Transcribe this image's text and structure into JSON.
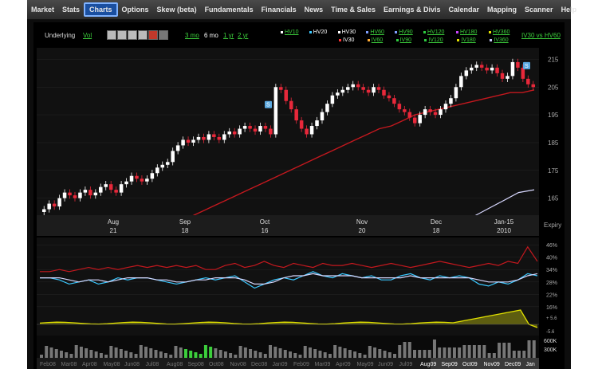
{
  "nav": {
    "tabs": [
      "Market",
      "Stats",
      "Charts",
      "Options",
      "Skew (beta)",
      "Fundamentals",
      "Financials",
      "News",
      "Time & Sales",
      "Earnings & Divis",
      "Calendar",
      "Mapping",
      "Scanner",
      "Help"
    ],
    "active": "Charts"
  },
  "toolbar": {
    "underlying_label": "Underlying",
    "vol_link": "Vol",
    "ranges": [
      "3 mo",
      "6 mo",
      "1 yr",
      "2 yr"
    ],
    "active_range": "6 mo",
    "compare_label": "IV30 vs HV60",
    "legend_row1": [
      {
        "label": "HV10",
        "color": "#ffffff",
        "underline": true
      },
      {
        "label": "HV20",
        "color": "#3cc8ff",
        "underline": false
      },
      {
        "label": "HV30",
        "color": "#ffffff",
        "underline": false
      },
      {
        "label": "HV60",
        "color": "#7f9fff",
        "underline": true
      },
      {
        "label": "HV90",
        "color": "#7f9fff",
        "underline": true
      },
      {
        "label": "HV120",
        "color": "#2ecc40",
        "underline": true
      },
      {
        "label": "HV180",
        "color": "#cc44ff",
        "underline": true
      },
      {
        "label": "HV360",
        "color": "#e0e000",
        "underline": true
      }
    ],
    "legend_row2": [
      {
        "label": "IV30",
        "color": "#ff3333",
        "underline": false
      },
      {
        "label": "IV60",
        "color": "#ffaa33",
        "underline": true
      },
      {
        "label": "IV90",
        "color": "#2ecc40",
        "underline": true
      },
      {
        "label": "IV120",
        "color": "#2ecc40",
        "underline": true
      },
      {
        "label": "IV180",
        "color": "#e0e000",
        "underline": true
      },
      {
        "label": "IV360",
        "color": "#ccccff",
        "underline": true
      }
    ]
  },
  "price_chart": {
    "y_ticks": [
      "215",
      "205",
      "195",
      "185",
      "175",
      "165"
    ],
    "months": [
      {
        "month": "Aug",
        "day": "21"
      },
      {
        "month": "Sep",
        "day": "18"
      },
      {
        "month": "Oct",
        "day": "16"
      },
      {
        "month": "Nov",
        "day": "20"
      },
      {
        "month": "Dec",
        "day": "18"
      },
      {
        "month": "Jan-15",
        "day": "2010"
      }
    ],
    "expiry_label": "Expiry",
    "markers": [
      "S",
      "S"
    ]
  },
  "vol_chart": {
    "y_ticks": [
      "46%",
      "40%",
      "34%",
      "28%",
      "22%",
      "16%"
    ],
    "spread_ticks": [
      "+ 5.6",
      "-5.6"
    ],
    "volume_ticks": [
      "600K",
      "300K"
    ]
  },
  "timeline": {
    "labels": [
      "Feb08",
      "Mar08",
      "Apr08",
      "May08",
      "Jun08",
      "Jul08",
      "Aug08",
      "Sep08",
      "Oct08",
      "Nov08",
      "Dec08",
      "Jan09",
      "Feb09",
      "Mar09",
      "Apr09",
      "May09",
      "Jun09",
      "Jul09",
      "Aug09",
      "Sep09",
      "Oct09",
      "Nov09",
      "Dec09",
      "Jan"
    ]
  },
  "colors": {
    "accent": "#1a4fa0",
    "iv30": "#c4181e",
    "hv20": "#3cc8ff",
    "hv30": "#d8d8ff",
    "spread": "#e0e000",
    "up": "#ffffff",
    "down": "#e8283a"
  },
  "chart_data": [
    {
      "type": "candlestick",
      "title": "",
      "ylim": [
        160,
        218
      ],
      "x_labels": [
        "Aug 21",
        "Sep 18",
        "Oct 16",
        "Nov 20",
        "Dec 18",
        "Jan-15 2010"
      ],
      "close": [
        161,
        163,
        162,
        165,
        167,
        166,
        165,
        167,
        168,
        166,
        167,
        169,
        170,
        168,
        167,
        170,
        171,
        173,
        172,
        171,
        172,
        174,
        176,
        177,
        178,
        182,
        184,
        186,
        185,
        186,
        187,
        186,
        188,
        187,
        186,
        188,
        189,
        188,
        190,
        191,
        190,
        189,
        191,
        190,
        188,
        205,
        204,
        200,
        197,
        193,
        190,
        188,
        191,
        193,
        196,
        199,
        202,
        203,
        204,
        205,
        206,
        205,
        204,
        203,
        205,
        204,
        202,
        201,
        199,
        197,
        196,
        194,
        192,
        195,
        197,
        196,
        195,
        197,
        199,
        201,
        205,
        209,
        211,
        212,
        213,
        212,
        211,
        212,
        210,
        208,
        209,
        214,
        212,
        208,
        206,
        205
      ],
      "iv30_ma": [
        152,
        154,
        156,
        158,
        160,
        162,
        164,
        166,
        168,
        170,
        172,
        174,
        176,
        178,
        180,
        182,
        184,
        186,
        188,
        190,
        191,
        193,
        195,
        196,
        197,
        198,
        199,
        200,
        201,
        202,
        203,
        203,
        204
      ],
      "hv_ma": [
        152,
        155,
        158,
        161,
        164,
        167,
        168
      ]
    },
    {
      "type": "line",
      "title": "",
      "ylim": [
        14,
        48
      ],
      "series": [
        {
          "name": "IV30",
          "values": [
            33,
            33,
            34,
            33,
            34,
            35,
            34,
            35,
            34,
            35,
            36,
            35,
            36,
            35,
            36,
            35,
            36,
            34,
            34,
            36,
            37,
            35,
            36,
            38,
            36,
            35,
            37,
            36,
            35,
            37,
            36,
            36,
            37,
            36,
            35,
            36,
            37,
            36,
            35,
            36,
            37,
            38,
            37,
            36,
            35,
            36,
            37,
            36,
            38,
            37,
            45,
            38
          ]
        },
        {
          "name": "HV20",
          "values": [
            30,
            30,
            29,
            27,
            28,
            29,
            27,
            28,
            30,
            29,
            30,
            30,
            29,
            28,
            27,
            28,
            29,
            30,
            29,
            30,
            31,
            28,
            25,
            27,
            29,
            30,
            29,
            31,
            33,
            31,
            30,
            32,
            31,
            30,
            31,
            29,
            29,
            31,
            32,
            30,
            29,
            31,
            30,
            31,
            30,
            27,
            26,
            28,
            27,
            29,
            32,
            31
          ]
        },
        {
          "name": "HV30",
          "values": [
            30,
            30,
            30,
            29,
            28,
            29,
            29,
            28,
            29,
            30,
            30,
            30,
            29,
            29,
            28,
            28,
            29,
            29,
            30,
            30,
            30,
            29,
            27,
            27,
            28,
            30,
            31,
            31,
            32,
            31,
            31,
            31,
            31,
            30,
            30,
            30,
            30,
            30,
            31,
            30,
            30,
            30,
            30,
            30,
            30,
            29,
            28,
            28,
            28,
            29,
            31,
            32
          ]
        }
      ]
    }
  ]
}
